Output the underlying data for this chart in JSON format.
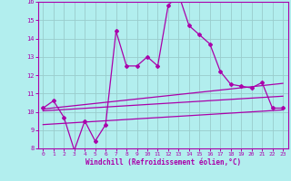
{
  "xlabel": "Windchill (Refroidissement éolien,°C)",
  "bg_color": "#b2eeee",
  "line_color": "#aa00aa",
  "grid_color": "#99cccc",
  "xlim": [
    -0.5,
    23.5
  ],
  "ylim": [
    8,
    16
  ],
  "yticks": [
    8,
    9,
    10,
    11,
    12,
    13,
    14,
    15,
    16
  ],
  "xticks": [
    0,
    1,
    2,
    3,
    4,
    5,
    6,
    7,
    8,
    9,
    10,
    11,
    12,
    13,
    14,
    15,
    16,
    17,
    18,
    19,
    20,
    21,
    22,
    23
  ],
  "main_x": [
    0,
    1,
    2,
    3,
    4,
    5,
    6,
    7,
    8,
    9,
    10,
    11,
    12,
    13,
    14,
    15,
    16,
    17,
    18,
    19,
    20,
    21,
    22,
    23
  ],
  "main_y": [
    10.2,
    10.6,
    9.7,
    7.9,
    9.5,
    8.4,
    9.3,
    14.4,
    12.5,
    12.5,
    13.0,
    12.5,
    15.8,
    16.4,
    14.7,
    14.2,
    13.7,
    12.2,
    11.5,
    11.4,
    11.3,
    11.6,
    10.2,
    10.2
  ],
  "line1_x": [
    0,
    23
  ],
  "line1_y": [
    10.15,
    11.55
  ],
  "line2_x": [
    0,
    23
  ],
  "line2_y": [
    10.05,
    10.85
  ],
  "line3_x": [
    0,
    23
  ],
  "line3_y": [
    9.3,
    10.1
  ]
}
